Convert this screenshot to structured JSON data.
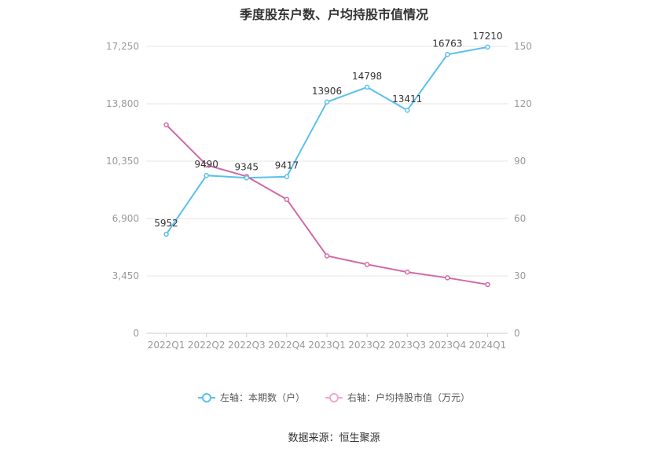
{
  "chart_data": {
    "type": "line",
    "title": "季度股东户数、户均持股市值情况",
    "categories": [
      "2022Q1",
      "2022Q2",
      "2022Q3",
      "2022Q4",
      "2023Q1",
      "2023Q2",
      "2023Q3",
      "2023Q4",
      "2024Q1"
    ],
    "left_axis": {
      "ticks": [
        "0",
        "3,450",
        "6,900",
        "10,350",
        "13,800",
        "17,250"
      ],
      "range": [
        0,
        17250
      ]
    },
    "right_axis": {
      "ticks": [
        "0",
        "30",
        "60",
        "90",
        "120",
        "150"
      ],
      "range": [
        0,
        150
      ]
    },
    "series": [
      {
        "name": "左轴：本期数（户）",
        "axis": "left",
        "color": "#5bc0eb",
        "values": [
          5952,
          9490,
          9345,
          9417,
          13906,
          14798,
          13411,
          16763,
          17210
        ],
        "labels": [
          "5952",
          "9490",
          "9345",
          "9417",
          "13906",
          "14798",
          "13411",
          "16763",
          "17210"
        ]
      },
      {
        "name": "右轴：户均持股市值（万元）",
        "axis": "right",
        "color": "#d16aa6",
        "values": [
          109,
          88,
          82,
          70,
          40.5,
          36,
          32,
          29,
          25.5
        ]
      }
    ],
    "grid": true,
    "legend": "bottom-center"
  },
  "source": "数据来源：恒生聚源"
}
